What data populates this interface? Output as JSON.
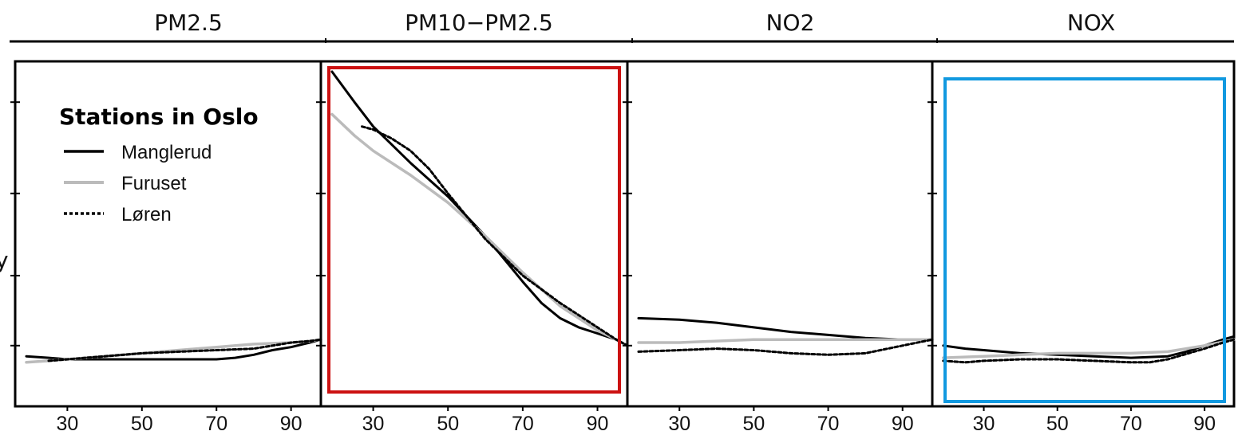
{
  "chart_data": {
    "type": "line",
    "ylabel_fragment": "y",
    "legend": {
      "title": "Stations in Oslo",
      "placement": "top-left of first panel",
      "entries": [
        {
          "name": "Manglerud",
          "color": "#000000",
          "style": "solid"
        },
        {
          "name": "Furuset",
          "color": "#bbbbbb",
          "style": "solid"
        },
        {
          "name": "Løren",
          "color": "#000000",
          "style": "dotted"
        }
      ]
    },
    "x_ticks": [
      "30",
      "50",
      "70",
      "90"
    ],
    "x_tick_values": [
      30,
      50,
      70,
      90
    ],
    "xlim": [
      16,
      98
    ],
    "ylim": [
      0,
      1
    ],
    "grid": false,
    "panels": [
      {
        "title": "PM2.5",
        "highlight": null,
        "series": [
          {
            "name": "Manglerud",
            "x": [
              19,
              25,
              30,
              40,
              50,
              60,
              70,
              75,
              80,
              85,
              90,
              95,
              98
            ],
            "y": [
              0.065,
              0.06,
              0.055,
              0.055,
              0.055,
              0.055,
              0.055,
              0.06,
              0.07,
              0.085,
              0.095,
              0.11,
              0.12
            ]
          },
          {
            "name": "Furuset",
            "x": [
              19,
              25,
              30,
              40,
              50,
              60,
              70,
              80,
              90,
              95,
              98
            ],
            "y": [
              0.045,
              0.05,
              0.055,
              0.065,
              0.075,
              0.085,
              0.095,
              0.105,
              0.11,
              0.115,
              0.12
            ]
          },
          {
            "name": "Løren",
            "x": [
              25,
              30,
              40,
              50,
              60,
              70,
              80,
              85,
              90,
              95,
              98
            ],
            "y": [
              0.05,
              0.055,
              0.065,
              0.075,
              0.08,
              0.085,
              0.09,
              0.1,
              0.11,
              0.115,
              0.12
            ]
          }
        ]
      },
      {
        "title": "PM10−PM2.5",
        "highlight": "#cc1111",
        "series": [
          {
            "name": "Manglerud",
            "x": [
              19,
              25,
              30,
              40,
              50,
              60,
              70,
              75,
              80,
              85,
              90,
              95,
              98
            ],
            "y": [
              1.0,
              0.9,
              0.82,
              0.7,
              0.59,
              0.46,
              0.31,
              0.24,
              0.19,
              0.16,
              0.14,
              0.12,
              0.1
            ]
          },
          {
            "name": "Furuset",
            "x": [
              19,
              25,
              30,
              40,
              50,
              60,
              70,
              80,
              90,
              95,
              98
            ],
            "y": [
              0.86,
              0.79,
              0.74,
              0.66,
              0.57,
              0.46,
              0.34,
              0.23,
              0.15,
              0.12,
              0.1
            ]
          },
          {
            "name": "Løren",
            "x": [
              27,
              30,
              35,
              40,
              45,
              50,
              60,
              70,
              80,
              90,
              95,
              98
            ],
            "y": [
              0.82,
              0.81,
              0.78,
              0.74,
              0.68,
              0.6,
              0.45,
              0.33,
              0.24,
              0.16,
              0.12,
              0.1
            ]
          }
        ]
      },
      {
        "title": "NO2",
        "highlight": null,
        "series": [
          {
            "name": "Manglerud",
            "x": [
              19,
              30,
              40,
              50,
              60,
              70,
              80,
              90,
              98
            ],
            "y": [
              0.19,
              0.185,
              0.175,
              0.16,
              0.145,
              0.135,
              0.125,
              0.12,
              0.12
            ]
          },
          {
            "name": "Furuset",
            "x": [
              19,
              30,
              40,
              50,
              60,
              70,
              80,
              90,
              98
            ],
            "y": [
              0.11,
              0.11,
              0.115,
              0.12,
              0.12,
              0.12,
              0.12,
              0.12,
              0.12
            ]
          },
          {
            "name": "Løren",
            "x": [
              19,
              30,
              40,
              50,
              60,
              70,
              80,
              90,
              98
            ],
            "y": [
              0.08,
              0.085,
              0.09,
              0.085,
              0.075,
              0.07,
              0.075,
              0.1,
              0.12
            ]
          }
        ]
      },
      {
        "title": "NOX",
        "highlight": "#1199e0",
        "series": [
          {
            "name": "Manglerud",
            "x": [
              19,
              25,
              30,
              40,
              50,
              60,
              70,
              80,
              85,
              90,
              95,
              98
            ],
            "y": [
              0.1,
              0.09,
              0.085,
              0.075,
              0.07,
              0.065,
              0.06,
              0.065,
              0.08,
              0.1,
              0.12,
              0.13
            ]
          },
          {
            "name": "Furuset",
            "x": [
              19,
              30,
              40,
              50,
              60,
              70,
              80,
              90,
              98
            ],
            "y": [
              0.06,
              0.065,
              0.07,
              0.075,
              0.075,
              0.075,
              0.08,
              0.1,
              0.12
            ]
          },
          {
            "name": "Løren",
            "x": [
              19,
              25,
              30,
              40,
              50,
              60,
              70,
              75,
              80,
              90,
              95,
              98
            ],
            "y": [
              0.05,
              0.045,
              0.05,
              0.055,
              0.055,
              0.05,
              0.045,
              0.045,
              0.055,
              0.09,
              0.11,
              0.12
            ]
          }
        ]
      }
    ]
  }
}
